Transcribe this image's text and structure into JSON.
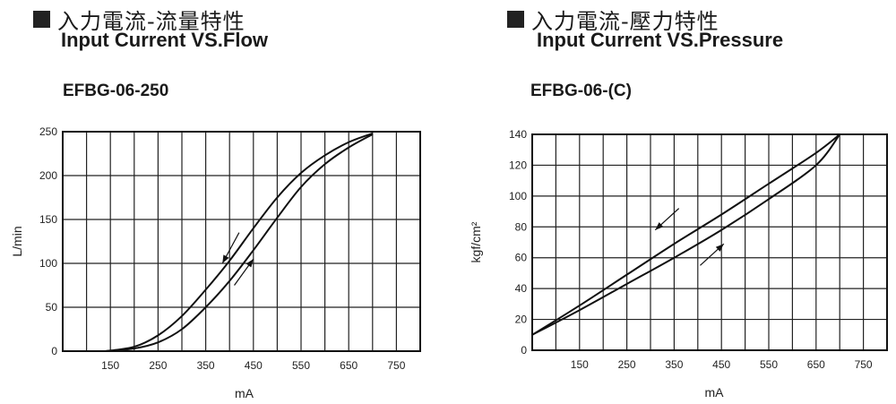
{
  "left": {
    "title_zh": "入力電流-流量特性",
    "title_en": "Input Current VS.Flow",
    "model": "EFBG-06-250"
  },
  "right": {
    "title_zh": "入力電流-壓力特性",
    "title_en": "Input Current VS.Pressure",
    "model": "EFBG-06-(C)"
  },
  "chart_data": [
    {
      "type": "line",
      "title": "Input Current VS.Flow",
      "subtitle": "EFBG-06-250",
      "xlabel": "mA",
      "ylabel": "L/min",
      "xlim": [
        50,
        800
      ],
      "ylim": [
        0,
        250
      ],
      "x_ticks": [
        150,
        250,
        350,
        450,
        550,
        650,
        750
      ],
      "y_ticks": [
        0,
        50,
        100,
        150,
        200,
        250
      ],
      "grid": true,
      "hysteresis_arrows": [
        "decreasing (down-left) on left curve",
        "increasing (up-right) on right curve"
      ],
      "series": [
        {
          "x": [
            140,
            200,
            250,
            300,
            350,
            400,
            450,
            500,
            550,
            600,
            650,
            700
          ],
          "y": [
            0,
            5,
            18,
            40,
            70,
            103,
            140,
            175,
            203,
            223,
            238,
            248
          ]
        },
        {
          "x": [
            140,
            200,
            250,
            300,
            350,
            400,
            450,
            500,
            550,
            600,
            650,
            700
          ],
          "y": [
            0,
            3,
            10,
            25,
            50,
            80,
            115,
            152,
            187,
            213,
            232,
            247
          ]
        }
      ]
    },
    {
      "type": "line",
      "title": "Input Current VS.Pressure",
      "subtitle": "EFBG-06-(C)",
      "xlabel": "mA",
      "ylabel": "kgf/cm²",
      "xlim": [
        50,
        800
      ],
      "ylim": [
        0,
        140
      ],
      "x_ticks": [
        150,
        250,
        350,
        450,
        550,
        650,
        750
      ],
      "y_ticks": [
        0,
        20,
        40,
        60,
        80,
        100,
        120,
        140
      ],
      "grid": true,
      "hysteresis_arrows": [
        "decreasing (down-left) on upper line",
        "increasing (up-right) on lower line"
      ],
      "series": [
        {
          "x": [
            50,
            150,
            250,
            350,
            450,
            550,
            650,
            700
          ],
          "y": [
            10,
            29,
            49,
            69,
            88,
            108,
            128,
            140
          ]
        },
        {
          "x": [
            50,
            150,
            250,
            350,
            450,
            550,
            650,
            700
          ],
          "y": [
            10,
            26,
            43,
            60,
            78,
            98,
            120,
            140
          ]
        }
      ]
    }
  ]
}
